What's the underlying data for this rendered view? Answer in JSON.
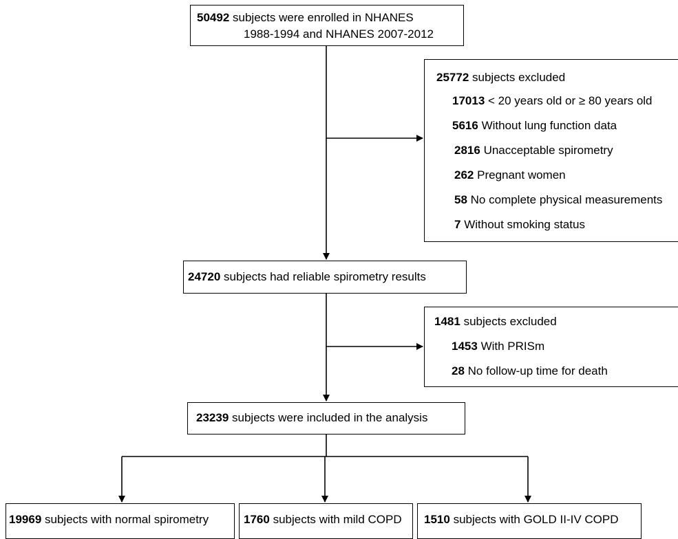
{
  "enrolled": {
    "count": "50492",
    "line1": "subjects were enrolled in NHANES",
    "line2": "1988-1994 and NHANES 2007-2012"
  },
  "excluded1": {
    "count": "25772",
    "label": "subjects excluded",
    "items": [
      {
        "count": "17013",
        "label": "< 20 years old or ≥ 80 years old"
      },
      {
        "count": "5616",
        "label": "Without lung function data"
      },
      {
        "count": "2816",
        "label": "Unacceptable spirometry"
      },
      {
        "count": "262",
        "label": "Pregnant women"
      },
      {
        "count": "58",
        "label": "No complete physical measurements"
      },
      {
        "count": "7",
        "label": "Without smoking status"
      }
    ]
  },
  "reliable": {
    "count": "24720",
    "label": "subjects had reliable spirometry results"
  },
  "excluded2": {
    "count": "1481",
    "label": "subjects excluded",
    "items": [
      {
        "count": "1453",
        "label": "With PRISm"
      },
      {
        "count": "28",
        "label": "No follow-up time for death"
      }
    ]
  },
  "included": {
    "count": "23239",
    "label": "subjects were included in the analysis"
  },
  "outcomes": [
    {
      "count": "19969",
      "label": "subjects with normal spirometry"
    },
    {
      "count": "1760",
      "label": "subjects with mild COPD"
    },
    {
      "count": "1510",
      "label": "subjects with GOLD II-IV COPD"
    }
  ]
}
